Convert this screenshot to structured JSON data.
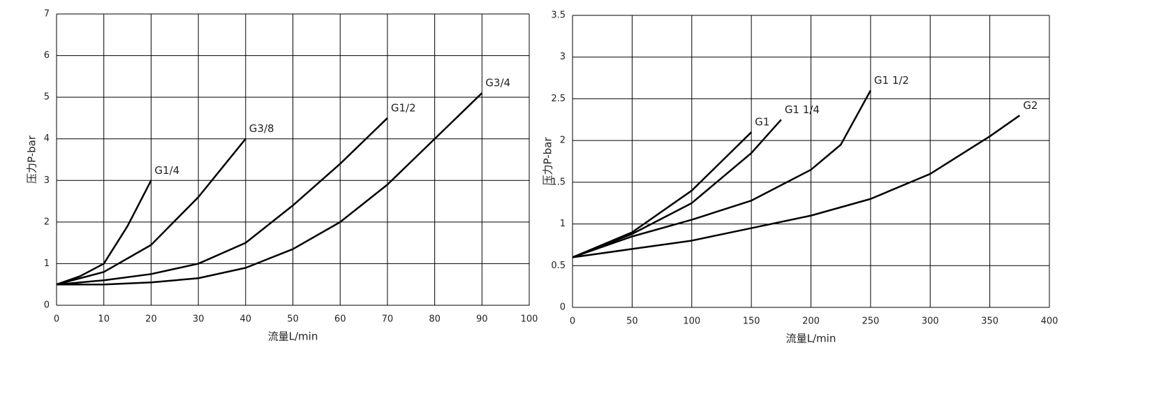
{
  "chart_data": [
    {
      "type": "line",
      "x_label": "流量L/min",
      "y_label": "压力P-bar",
      "xlim": [
        0,
        100
      ],
      "xticks": [
        0,
        10,
        20,
        30,
        40,
        50,
        60,
        70,
        80,
        90,
        100
      ],
      "ylim": [
        0,
        7
      ],
      "yticks": [
        0,
        1,
        2,
        3,
        4,
        5,
        6,
        7
      ],
      "grid": true,
      "series": [
        {
          "name": "G1/4",
          "color": "#000000",
          "x": [
            0,
            5,
            10,
            15,
            20
          ],
          "values": [
            0.5,
            0.7,
            1.0,
            1.9,
            3.0
          ]
        },
        {
          "name": "G3/8",
          "color": "#000000",
          "x": [
            0,
            10,
            20,
            30,
            40
          ],
          "values": [
            0.5,
            0.8,
            1.45,
            2.6,
            4.0
          ]
        },
        {
          "name": "G1/2",
          "color": "#000000",
          "x": [
            0,
            10,
            20,
            30,
            40,
            50,
            60,
            70
          ],
          "values": [
            0.5,
            0.6,
            0.75,
            1.0,
            1.5,
            2.4,
            3.4,
            4.5
          ]
        },
        {
          "name": "G3/4",
          "color": "#000000",
          "x": [
            0,
            10,
            20,
            30,
            40,
            50,
            60,
            70,
            80,
            90
          ],
          "values": [
            0.5,
            0.5,
            0.55,
            0.65,
            0.9,
            1.35,
            2.0,
            2.9,
            4.0,
            5.1
          ]
        }
      ]
    },
    {
      "type": "line",
      "x_label": "流量L/min",
      "y_label": "压力P-bar",
      "xlim": [
        0,
        400
      ],
      "xticks": [
        0,
        50,
        100,
        150,
        200,
        250,
        300,
        350,
        400
      ],
      "ylim": [
        0,
        3.5
      ],
      "yticks": [
        0,
        0.5,
        1,
        1.5,
        2,
        2.5,
        3,
        3.5
      ],
      "grid": true,
      "series": [
        {
          "name": "G1",
          "color": "#000000",
          "x": [
            0,
            50,
            100,
            150
          ],
          "values": [
            0.6,
            0.9,
            1.4,
            2.1
          ]
        },
        {
          "name": "G1 1/4",
          "color": "#000000",
          "x": [
            0,
            50,
            100,
            150,
            175
          ],
          "values": [
            0.6,
            0.88,
            1.25,
            1.85,
            2.25
          ]
        },
        {
          "name": "G1 1/2",
          "color": "#000000",
          "x": [
            0,
            50,
            100,
            150,
            200,
            225,
            250
          ],
          "values": [
            0.6,
            0.85,
            1.05,
            1.28,
            1.65,
            1.95,
            2.6
          ]
        },
        {
          "name": "G2",
          "color": "#000000",
          "x": [
            0,
            50,
            100,
            150,
            200,
            250,
            300,
            350,
            375
          ],
          "values": [
            0.6,
            0.7,
            0.8,
            0.95,
            1.1,
            1.3,
            1.6,
            2.05,
            2.3
          ]
        }
      ]
    }
  ]
}
